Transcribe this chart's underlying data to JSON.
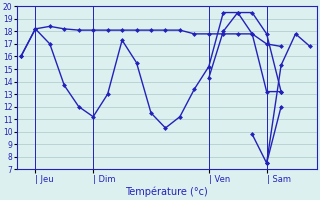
{
  "line1_x": [
    0,
    1,
    2,
    3,
    4,
    5,
    6,
    7,
    8,
    9,
    10,
    11,
    12,
    13,
    14,
    15,
    16,
    17,
    18
  ],
  "line1_y": [
    16.0,
    18.2,
    18.4,
    18.2,
    18.1,
    18.1,
    18.1,
    18.1,
    18.1,
    18.1,
    18.1,
    18.1,
    17.8,
    17.8,
    17.8,
    17.8,
    17.8,
    17.0,
    16.8
  ],
  "line2_x": [
    0,
    1,
    2,
    3,
    4,
    5,
    6,
    7,
    8,
    9,
    10,
    11,
    12,
    13,
    14,
    15,
    16,
    17,
    18
  ],
  "line2_y": [
    16.0,
    18.2,
    17.0,
    13.7,
    12.0,
    11.2,
    13.0,
    17.3,
    15.5,
    11.5,
    10.3,
    11.2,
    13.4,
    15.2,
    19.5,
    19.5,
    17.8,
    13.2,
    13.2
  ],
  "line3_x": [
    13,
    14,
    15,
    16,
    17,
    18
  ],
  "line3_y": [
    14.3,
    18.0,
    19.5,
    19.5,
    17.8,
    13.2
  ],
  "line4_x": [
    16,
    17,
    18
  ],
  "line4_y": [
    9.8,
    7.5,
    12.0
  ],
  "line5_x": [
    17,
    18,
    19,
    20
  ],
  "line5_y": [
    7.5,
    15.3,
    17.8,
    16.8
  ],
  "vline_x": [
    1,
    5,
    13,
    17
  ],
  "day_labels": [
    "| Jeu",
    "| Dim",
    "| Ven",
    "| Sam"
  ],
  "day_positions": [
    1,
    5,
    13,
    17
  ],
  "xlabel": "Température (°c)",
  "ylim": [
    7,
    20
  ],
  "xlim": [
    -0.3,
    20.5
  ],
  "yticks": [
    7,
    8,
    9,
    10,
    11,
    12,
    13,
    14,
    15,
    16,
    17,
    18,
    19,
    20
  ],
  "color": "#2222bb",
  "bg_color": "#ddf0f0",
  "grid_color": "#a8c8c8"
}
